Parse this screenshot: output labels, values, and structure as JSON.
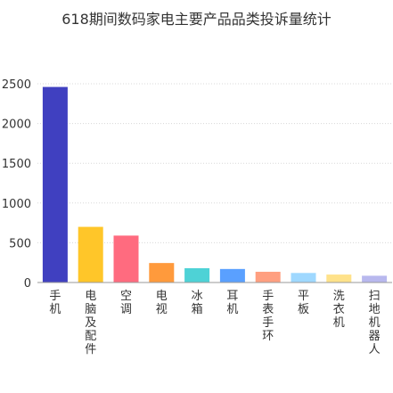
{
  "chart_data": {
    "type": "bar",
    "title": "618期间数码家电主要产品品类投诉量统计",
    "xlabel": "",
    "ylabel": "",
    "ylim": [
      0,
      2500
    ],
    "yticks": [
      0,
      500,
      1000,
      1500,
      2000,
      2500
    ],
    "grid": true,
    "legend": "none",
    "categories": [
      "手机",
      "电脑及配件",
      "空调",
      "电视",
      "冰箱",
      "耳机",
      "手表手环",
      "平板",
      "洗衣机",
      "扫地机器人"
    ],
    "values": [
      2460,
      700,
      590,
      245,
      180,
      170,
      135,
      120,
      100,
      85
    ],
    "colors": [
      "#4040c0",
      "#ffc629",
      "#ff6b7f",
      "#ff9a3c",
      "#4ed2d6",
      "#5aa0ff",
      "#ff9f80",
      "#9fd8ff",
      "#ffe28a",
      "#b8b8ee"
    ]
  }
}
